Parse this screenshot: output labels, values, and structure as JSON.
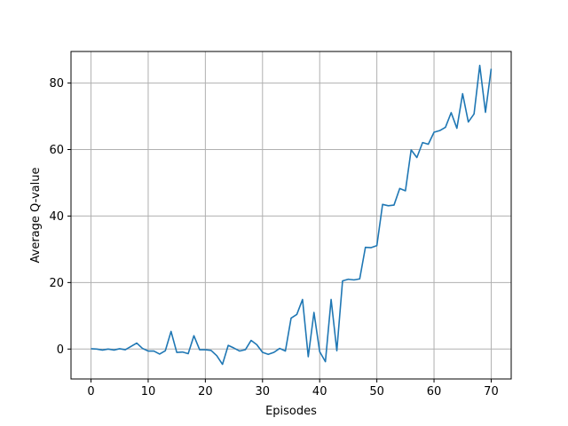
{
  "chart_data": {
    "type": "line",
    "xlabel": "Episodes",
    "ylabel": "Average Q-value",
    "xlim": [
      -3.5,
      73.5
    ],
    "ylim": [
      -9,
      89.5
    ],
    "grid": true,
    "x_ticks": [
      0,
      10,
      20,
      30,
      40,
      50,
      60,
      70
    ],
    "y_ticks": [
      0,
      20,
      40,
      60,
      80
    ],
    "series": [
      {
        "color": "#1f77b4",
        "x": [
          0,
          1,
          2,
          3,
          4,
          5,
          6,
          7,
          8,
          9,
          10,
          11,
          12,
          13,
          14,
          15,
          16,
          17,
          18,
          19,
          20,
          21,
          22,
          23,
          24,
          25,
          26,
          27,
          28,
          29,
          30,
          31,
          32,
          33,
          34,
          35,
          36,
          37,
          38,
          39,
          40,
          41,
          42,
          43,
          44,
          45,
          46,
          47,
          48,
          49,
          50,
          51,
          52,
          53,
          54,
          55,
          56,
          57,
          58,
          59,
          60,
          61,
          62,
          63,
          64,
          65,
          66,
          67,
          68,
          69,
          70
        ],
        "y": [
          0.1,
          0,
          -0.3,
          0,
          -0.3,
          0.1,
          -0.2,
          0.8,
          1.8,
          0.2,
          -0.6,
          -0.6,
          -1.5,
          -0.5,
          5.3,
          -1,
          -0.9,
          -1.4,
          4,
          -0.2,
          -0.2,
          -0.4,
          -2,
          -4.6,
          1.1,
          0.3,
          -0.6,
          -0.2,
          2.6,
          1.3,
          -1,
          -1.6,
          -1,
          0.2,
          -0.6,
          9.3,
          10.4,
          14.9,
          -2.3,
          11,
          -0.8,
          -3.8,
          14.9,
          -0.5,
          20.5,
          21,
          20.8,
          21.1,
          30.6,
          30.5,
          31.1,
          43.5,
          43.1,
          43.3,
          48.3,
          47.6,
          59.9,
          57.6,
          62.1,
          61.6,
          65.2,
          65.7,
          66.7,
          71.1,
          66.4,
          76.8,
          68.3,
          70.7,
          85.3,
          71.2,
          84.3
        ]
      }
    ]
  }
}
